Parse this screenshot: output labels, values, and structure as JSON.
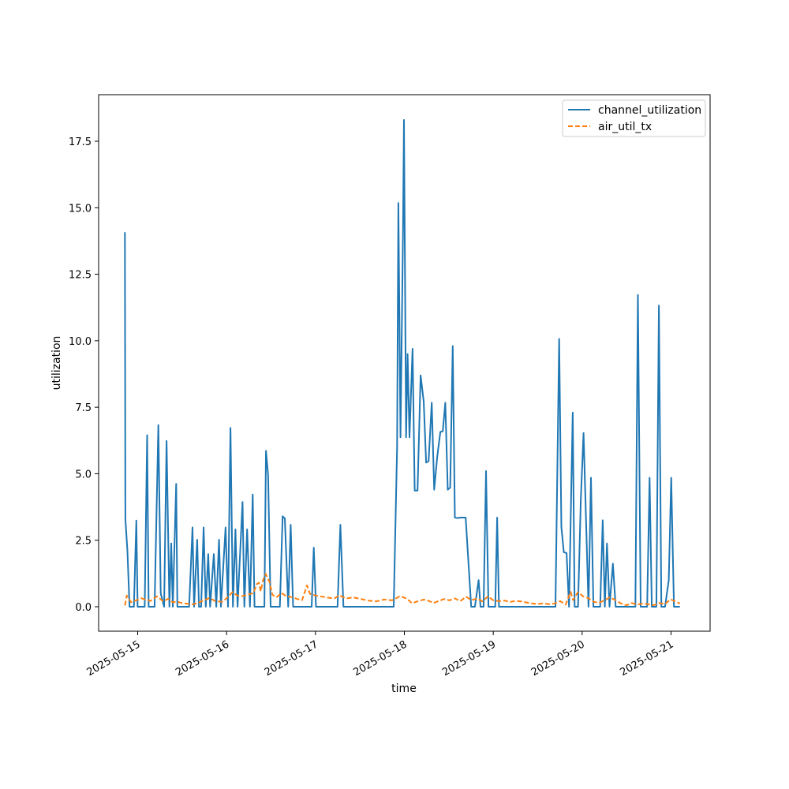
{
  "chart_data": {
    "type": "line",
    "title": "",
    "xlabel": "time",
    "ylabel": "utilization",
    "xlim": [
      "2025-05-14 13:27",
      "2025-05-21 10:33"
    ],
    "ylim": [
      -0.92,
      19.25
    ],
    "x_ticks": [
      "2025-05-15",
      "2025-05-16",
      "2025-05-17",
      "2025-05-18",
      "2025-05-19",
      "2025-05-20",
      "2025-05-21"
    ],
    "y_ticks": [
      "0.0",
      "2.5",
      "5.0",
      "7.5",
      "10.0",
      "12.5",
      "15.0",
      "17.5"
    ],
    "grid": false,
    "legend_position": "top-right",
    "series": [
      {
        "name": "channel_utilization",
        "color": "#1f77b4",
        "dash": "solid",
        "points": [
          [
            "2025-05-14 20:33",
            14.08
          ],
          [
            "2025-05-14 20:40",
            3.3
          ],
          [
            "2025-05-14 21:13",
            2.1
          ],
          [
            "2025-05-14 21:48",
            0.0
          ],
          [
            "2025-05-14 22:58",
            0.0
          ],
          [
            "2025-05-14 23:38",
            3.24
          ],
          [
            "2025-05-14 23:58",
            0.0
          ],
          [
            "2025-05-15 01:53",
            0.0
          ],
          [
            "2025-05-15 02:33",
            6.45
          ],
          [
            "2025-05-15 02:58",
            0.0
          ],
          [
            "2025-05-15 04:33",
            0.0
          ],
          [
            "2025-05-15 05:34",
            6.83
          ],
          [
            "2025-05-15 06:13",
            0.5
          ],
          [
            "2025-05-15 07:08",
            0.0
          ],
          [
            "2025-05-15 07:48",
            6.23
          ],
          [
            "2025-05-15 08:33",
            0.0
          ],
          [
            "2025-05-15 09:03",
            2.38
          ],
          [
            "2025-05-15 09:28",
            0.0
          ],
          [
            "2025-05-15 10:23",
            4.62
          ],
          [
            "2025-05-15 10:43",
            0.0
          ],
          [
            "2025-05-15 13:53",
            0.0
          ],
          [
            "2025-05-15 14:48",
            2.98
          ],
          [
            "2025-05-15 15:13",
            0.0
          ],
          [
            "2025-05-15 16:03",
            2.52
          ],
          [
            "2025-05-15 16:33",
            0.0
          ],
          [
            "2025-05-15 17:08",
            0.0
          ],
          [
            "2025-05-15 17:48",
            2.98
          ],
          [
            "2025-05-15 18:23",
            0.0
          ],
          [
            "2025-05-15 19:03",
            1.98
          ],
          [
            "2025-05-15 19:33",
            0.0
          ],
          [
            "2025-05-15 20:33",
            1.98
          ],
          [
            "2025-05-15 21:13",
            0.0
          ],
          [
            "2025-05-15 21:58",
            2.52
          ],
          [
            "2025-05-15 22:28",
            0.0
          ],
          [
            "2025-05-15 23:43",
            2.98
          ],
          [
            "2025-05-16 00:23",
            0.0
          ],
          [
            "2025-05-16 01:03",
            6.72
          ],
          [
            "2025-05-16 01:43",
            0.0
          ],
          [
            "2025-05-16 02:23",
            2.91
          ],
          [
            "2025-05-16 02:58",
            0.0
          ],
          [
            "2025-05-16 04:18",
            3.94
          ],
          [
            "2025-05-16 04:48",
            0.0
          ],
          [
            "2025-05-16 05:33",
            2.91
          ],
          [
            "2025-05-16 06:18",
            0.0
          ],
          [
            "2025-05-16 07:03",
            4.22
          ],
          [
            "2025-05-16 07:33",
            0.0
          ],
          [
            "2025-05-16 10:13",
            0.0
          ],
          [
            "2025-05-16 10:38",
            5.86
          ],
          [
            "2025-05-16 11:13",
            4.95
          ],
          [
            "2025-05-16 11:53",
            0.0
          ],
          [
            "2025-05-16 14:23",
            0.0
          ],
          [
            "2025-05-16 15:08",
            3.4
          ],
          [
            "2025-05-16 15:43",
            3.32
          ],
          [
            "2025-05-16 16:38",
            0.0
          ],
          [
            "2025-05-16 17:18",
            3.08
          ],
          [
            "2025-05-16 17:58",
            0.0
          ],
          [
            "2025-05-16 22:58",
            0.0
          ],
          [
            "2025-05-16 23:33",
            2.22
          ],
          [
            "2025-05-17 00:08",
            0.0
          ],
          [
            "2025-05-17 05:58",
            0.0
          ],
          [
            "2025-05-17 06:43",
            3.08
          ],
          [
            "2025-05-17 07:33",
            0.0
          ],
          [
            "2025-05-17 21:08",
            0.0
          ],
          [
            "2025-05-17 22:03",
            6.0
          ],
          [
            "2025-05-17 22:23",
            15.18
          ],
          [
            "2025-05-17 22:58",
            6.37
          ],
          [
            "2025-05-17 23:38",
            14.17
          ],
          [
            "2025-05-17 23:53",
            18.3
          ],
          [
            "2025-05-18 00:28",
            6.37
          ],
          [
            "2025-05-18 00:53",
            9.5
          ],
          [
            "2025-05-18 01:23",
            6.37
          ],
          [
            "2025-05-18 02:13",
            9.7
          ],
          [
            "2025-05-18 02:48",
            4.37
          ],
          [
            "2025-05-18 03:33",
            4.37
          ],
          [
            "2025-05-18 04:23",
            8.7
          ],
          [
            "2025-05-18 05:13",
            7.72
          ],
          [
            "2025-05-18 05:53",
            5.42
          ],
          [
            "2025-05-18 06:33",
            5.47
          ],
          [
            "2025-05-18 07:23",
            7.67
          ],
          [
            "2025-05-18 08:03",
            4.4
          ],
          [
            "2025-05-18 08:53",
            5.65
          ],
          [
            "2025-05-18 09:43",
            6.57
          ],
          [
            "2025-05-18 10:23",
            6.6
          ],
          [
            "2025-05-18 11:03",
            7.67
          ],
          [
            "2025-05-18 11:43",
            4.4
          ],
          [
            "2025-05-18 12:23",
            4.48
          ],
          [
            "2025-05-18 13:03",
            9.8
          ],
          [
            "2025-05-18 13:38",
            3.35
          ],
          [
            "2025-05-18 14:23",
            3.33
          ],
          [
            "2025-05-18 15:03",
            3.35
          ],
          [
            "2025-05-18 16:33",
            3.35
          ],
          [
            "2025-05-18 18:03",
            0.0
          ],
          [
            "2025-05-18 19:03",
            0.0
          ],
          [
            "2025-05-18 20:03",
            1.0
          ],
          [
            "2025-05-18 20:33",
            0.0
          ],
          [
            "2025-05-18 21:23",
            0.0
          ],
          [
            "2025-05-18 22:03",
            5.1
          ],
          [
            "2025-05-18 22:43",
            0.0
          ],
          [
            "2025-05-19 00:33",
            0.0
          ],
          [
            "2025-05-19 01:03",
            3.35
          ],
          [
            "2025-05-19 01:33",
            0.0
          ],
          [
            "2025-05-19 16:48",
            0.0
          ],
          [
            "2025-05-19 17:48",
            10.07
          ],
          [
            "2025-05-19 18:23",
            3.0
          ],
          [
            "2025-05-19 19:03",
            2.05
          ],
          [
            "2025-05-19 19:48",
            2.02
          ],
          [
            "2025-05-19 20:28",
            0.0
          ],
          [
            "2025-05-19 21:28",
            7.3
          ],
          [
            "2025-05-19 21:58",
            0.0
          ],
          [
            "2025-05-19 22:53",
            0.0
          ],
          [
            "2025-05-19 23:38",
            4.0
          ],
          [
            "2025-05-20 00:23",
            6.53
          ],
          [
            "2025-05-20 01:43",
            0.0
          ],
          [
            "2025-05-20 02:23",
            4.85
          ],
          [
            "2025-05-20 03:03",
            0.0
          ],
          [
            "2025-05-20 04:53",
            0.0
          ],
          [
            "2025-05-20 05:33",
            3.25
          ],
          [
            "2025-05-20 06:08",
            0.0
          ],
          [
            "2025-05-20 06:43",
            2.38
          ],
          [
            "2025-05-20 07:23",
            0.0
          ],
          [
            "2025-05-20 08:18",
            1.62
          ],
          [
            "2025-05-20 09:03",
            0.0
          ],
          [
            "2025-05-20 14:23",
            0.0
          ],
          [
            "2025-05-20 15:03",
            11.72
          ],
          [
            "2025-05-20 15:48",
            0.0
          ],
          [
            "2025-05-20 17:33",
            0.0
          ],
          [
            "2025-05-20 18:13",
            4.85
          ],
          [
            "2025-05-20 18:48",
            0.0
          ],
          [
            "2025-05-20 20:03",
            0.0
          ],
          [
            "2025-05-20 20:43",
            11.32
          ],
          [
            "2025-05-20 21:23",
            0.0
          ],
          [
            "2025-05-20 22:23",
            0.0
          ],
          [
            "2025-05-20 23:23",
            1.0
          ],
          [
            "2025-05-21 00:03",
            4.85
          ],
          [
            "2025-05-21 00:48",
            0.0
          ],
          [
            "2025-05-21 02:23",
            0.0
          ]
        ]
      },
      {
        "name": "air_util_tx",
        "color": "#ff7f0e",
        "dash": "dashed",
        "points": [
          [
            "2025-05-14 20:33",
            0.05
          ],
          [
            "2025-05-14 21:03",
            0.42
          ],
          [
            "2025-05-14 22:13",
            0.17
          ],
          [
            "2025-05-14 23:33",
            0.24
          ],
          [
            "2025-05-15 00:53",
            0.32
          ],
          [
            "2025-05-15 02:08",
            0.27
          ],
          [
            "2025-05-15 03:28",
            0.22
          ],
          [
            "2025-05-15 05:13",
            0.39
          ],
          [
            "2025-05-15 06:53",
            0.2
          ],
          [
            "2025-05-15 08:13",
            0.3
          ],
          [
            "2025-05-15 09:28",
            0.17
          ],
          [
            "2025-05-15 10:43",
            0.19
          ],
          [
            "2025-05-15 12:03",
            0.13
          ],
          [
            "2025-05-15 13:28",
            0.11
          ],
          [
            "2025-05-15 14:48",
            0.09
          ],
          [
            "2025-05-15 16:08",
            0.13
          ],
          [
            "2025-05-15 18:03",
            0.26
          ],
          [
            "2025-05-15 19:28",
            0.33
          ],
          [
            "2025-05-15 21:03",
            0.2
          ],
          [
            "2025-05-15 22:53",
            0.19
          ],
          [
            "2025-05-16 00:13",
            0.35
          ],
          [
            "2025-05-16 01:38",
            0.55
          ],
          [
            "2025-05-16 02:53",
            0.42
          ],
          [
            "2025-05-16 04:18",
            0.4
          ],
          [
            "2025-05-16 05:38",
            0.45
          ],
          [
            "2025-05-16 07:13",
            0.51
          ],
          [
            "2025-05-16 08:08",
            0.85
          ],
          [
            "2025-05-16 08:43",
            0.9
          ],
          [
            "2025-05-16 09:13",
            0.58
          ],
          [
            "2025-05-16 09:53",
            1.02
          ],
          [
            "2025-05-16 10:33",
            1.23
          ],
          [
            "2025-05-16 11:33",
            0.95
          ],
          [
            "2025-05-16 12:23",
            0.45
          ],
          [
            "2025-05-16 13:28",
            0.35
          ],
          [
            "2025-05-16 14:48",
            0.52
          ],
          [
            "2025-05-16 16:03",
            0.4
          ],
          [
            "2025-05-16 17:38",
            0.36
          ],
          [
            "2025-05-16 19:03",
            0.29
          ],
          [
            "2025-05-16 20:23",
            0.25
          ],
          [
            "2025-05-16 21:43",
            0.8
          ],
          [
            "2025-05-16 22:33",
            0.48
          ],
          [
            "2025-05-17 00:03",
            0.42
          ],
          [
            "2025-05-17 01:43",
            0.38
          ],
          [
            "2025-05-17 03:28",
            0.34
          ],
          [
            "2025-05-17 05:08",
            0.31
          ],
          [
            "2025-05-17 06:23",
            0.43
          ],
          [
            "2025-05-17 08:13",
            0.31
          ],
          [
            "2025-05-17 10:13",
            0.35
          ],
          [
            "2025-05-17 12:03",
            0.3
          ],
          [
            "2025-05-17 14:13",
            0.23
          ],
          [
            "2025-05-17 16:23",
            0.2
          ],
          [
            "2025-05-17 18:33",
            0.27
          ],
          [
            "2025-05-17 20:43",
            0.24
          ],
          [
            "2025-05-17 22:53",
            0.4
          ],
          [
            "2025-05-18 00:43",
            0.3
          ],
          [
            "2025-05-18 02:03",
            0.13
          ],
          [
            "2025-05-18 03:33",
            0.2
          ],
          [
            "2025-05-18 05:13",
            0.27
          ],
          [
            "2025-05-18 06:38",
            0.22
          ],
          [
            "2025-05-18 07:53",
            0.14
          ],
          [
            "2025-05-18 09:13",
            0.21
          ],
          [
            "2025-05-18 10:43",
            0.29
          ],
          [
            "2025-05-18 12:13",
            0.24
          ],
          [
            "2025-05-18 13:38",
            0.31
          ],
          [
            "2025-05-18 15:08",
            0.21
          ],
          [
            "2025-05-18 16:38",
            0.38
          ],
          [
            "2025-05-18 18:08",
            0.25
          ],
          [
            "2025-05-18 19:38",
            0.31
          ],
          [
            "2025-05-18 21:08",
            0.2
          ],
          [
            "2025-05-18 22:33",
            0.39
          ],
          [
            "2025-05-19 00:03",
            0.24
          ],
          [
            "2025-05-19 01:33",
            0.21
          ],
          [
            "2025-05-19 03:03",
            0.23
          ],
          [
            "2025-05-19 04:33",
            0.18
          ],
          [
            "2025-05-19 06:03",
            0.22
          ],
          [
            "2025-05-19 07:33",
            0.2
          ],
          [
            "2025-05-19 09:03",
            0.16
          ],
          [
            "2025-05-19 10:33",
            0.12
          ],
          [
            "2025-05-19 12:03",
            0.1
          ],
          [
            "2025-05-19 13:33",
            0.13
          ],
          [
            "2025-05-19 15:03",
            0.09
          ],
          [
            "2025-05-19 16:33",
            0.12
          ],
          [
            "2025-05-19 18:03",
            0.21
          ],
          [
            "2025-05-19 19:33",
            0.08
          ],
          [
            "2025-05-19 20:53",
            0.56
          ],
          [
            "2025-05-19 21:33",
            0.25
          ],
          [
            "2025-05-19 22:53",
            0.55
          ],
          [
            "2025-05-20 00:13",
            0.39
          ],
          [
            "2025-05-20 01:43",
            0.32
          ],
          [
            "2025-05-20 03:13",
            0.18
          ],
          [
            "2025-05-20 04:33",
            0.15
          ],
          [
            "2025-05-20 06:03",
            0.24
          ],
          [
            "2025-05-20 07:23",
            0.35
          ],
          [
            "2025-05-20 08:53",
            0.26
          ],
          [
            "2025-05-20 10:23",
            0.13
          ],
          [
            "2025-05-20 11:53",
            0.05
          ],
          [
            "2025-05-20 13:23",
            0.14
          ],
          [
            "2025-05-20 14:53",
            0.08
          ],
          [
            "2025-05-20 16:23",
            0.12
          ],
          [
            "2025-05-20 17:53",
            0.09
          ],
          [
            "2025-05-20 19:23",
            0.06
          ],
          [
            "2025-05-20 20:53",
            0.14
          ],
          [
            "2025-05-20 22:23",
            0.1
          ],
          [
            "2025-05-20 23:53",
            0.28
          ],
          [
            "2025-05-21 01:23",
            0.18
          ],
          [
            "2025-05-21 02:23",
            0.12
          ]
        ]
      }
    ]
  }
}
